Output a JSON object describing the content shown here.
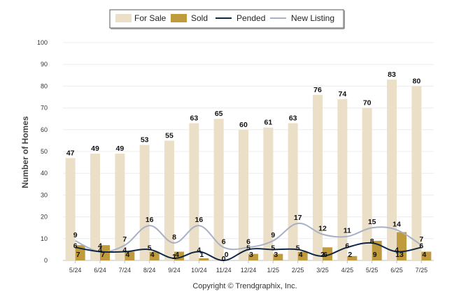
{
  "chart_data": {
    "type": "bar",
    "ylabel": "Number of Homes",
    "ylim": [
      0,
      100
    ],
    "yticks": [
      0,
      10,
      20,
      30,
      40,
      50,
      60,
      70,
      80,
      90,
      100
    ],
    "categories": [
      "5/24",
      "6/24",
      "7/24",
      "8/24",
      "9/24",
      "10/24",
      "11/24",
      "12/24",
      "1/25",
      "2/25",
      "3/25",
      "4/25",
      "5/25",
      "6/25",
      "7/25"
    ],
    "grid": true,
    "legend_position": "top-center",
    "series": [
      {
        "name": "For Sale",
        "kind": "bar",
        "color": "#ecdfc7",
        "values": [
          47,
          49,
          49,
          53,
          55,
          63,
          65,
          60,
          61,
          63,
          76,
          74,
          70,
          83,
          80
        ]
      },
      {
        "name": "Sold",
        "kind": "bar",
        "color": "#bf9b3e",
        "values": [
          7,
          7,
          4,
          4,
          4,
          1,
          0,
          3,
          3,
          4,
          6,
          2,
          9,
          13,
          4
        ]
      },
      {
        "name": "Pended",
        "kind": "line",
        "color": "#0f2745",
        "values": [
          6,
          4,
          4,
          5,
          1,
          4,
          0,
          5,
          5,
          5,
          2,
          6,
          8,
          4,
          6
        ]
      },
      {
        "name": "New Listing",
        "kind": "line",
        "color": "#a7b0c5",
        "values": [
          9,
          4,
          7,
          16,
          8,
          16,
          6,
          6,
          9,
          17,
          12,
          11,
          15,
          14,
          7
        ]
      }
    ]
  },
  "credit": "Copyright © Trendgraphix, Inc."
}
